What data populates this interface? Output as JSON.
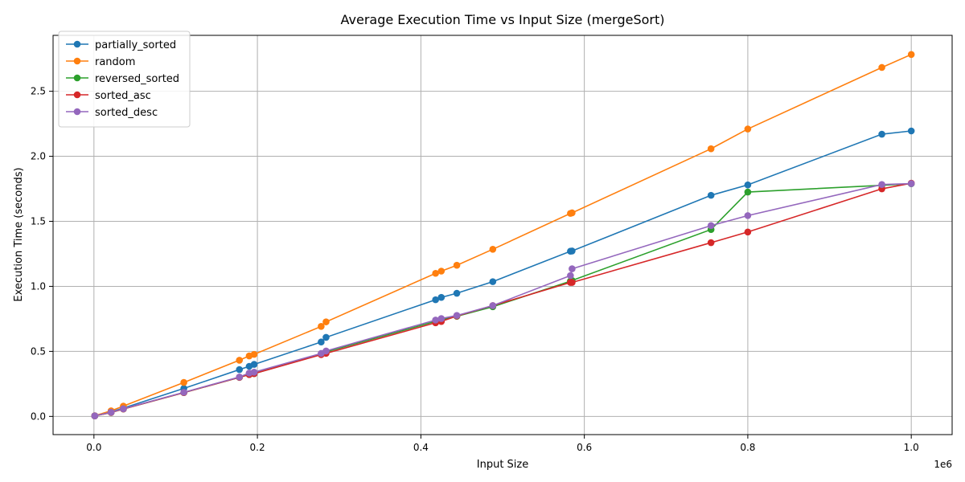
{
  "chart_data": {
    "type": "line",
    "title": "Average Execution Time vs Input Size (mergeSort)",
    "xlabel": "Input Size",
    "ylabel": "Execution Time (seconds)",
    "x_multiplier_label": "1e6",
    "xlim": [
      -0.05,
      1.05
    ],
    "ylim": [
      -0.14,
      2.93
    ],
    "x_ticks": [
      0.0,
      0.2,
      0.4,
      0.6,
      0.8,
      1.0
    ],
    "x_tick_labels": [
      "0.0",
      "0.2",
      "0.4",
      "0.6",
      "0.8",
      "1.0"
    ],
    "y_ticks": [
      0.0,
      0.5,
      1.0,
      1.5,
      2.0,
      2.5
    ],
    "y_tick_labels": [
      "0.0",
      "0.5",
      "1.0",
      "1.5",
      "2.0",
      "2.5"
    ],
    "grid": true,
    "legend_position": "top-left",
    "series": [
      {
        "name": "partially_sorted",
        "color": "#1f77b4",
        "points": [
          [
            0.001,
            0.004
          ],
          [
            0.021,
            0.035
          ],
          [
            0.036,
            0.064
          ],
          [
            0.11,
            0.215
          ],
          [
            0.178,
            0.36
          ],
          [
            0.19,
            0.385
          ],
          [
            0.196,
            0.4
          ],
          [
            0.278,
            0.572
          ],
          [
            0.284,
            0.608
          ],
          [
            0.418,
            0.897
          ],
          [
            0.425,
            0.915
          ],
          [
            0.444,
            0.947
          ],
          [
            0.488,
            1.036
          ],
          [
            0.583,
            1.27
          ],
          [
            0.585,
            1.272
          ],
          [
            0.755,
            1.7
          ],
          [
            0.8,
            1.78
          ],
          [
            0.964,
            2.17
          ],
          [
            1.0,
            2.195
          ]
        ]
      },
      {
        "name": "random",
        "color": "#ff7f0e",
        "points": [
          [
            0.001,
            0.005
          ],
          [
            0.021,
            0.043
          ],
          [
            0.036,
            0.079
          ],
          [
            0.11,
            0.261
          ],
          [
            0.178,
            0.432
          ],
          [
            0.19,
            0.465
          ],
          [
            0.196,
            0.477
          ],
          [
            0.278,
            0.692
          ],
          [
            0.284,
            0.727
          ],
          [
            0.418,
            1.1
          ],
          [
            0.425,
            1.117
          ],
          [
            0.444,
            1.162
          ],
          [
            0.488,
            1.285
          ],
          [
            0.583,
            1.561
          ],
          [
            0.585,
            1.565
          ],
          [
            0.755,
            2.058
          ],
          [
            0.8,
            2.21
          ],
          [
            0.964,
            2.683
          ],
          [
            1.0,
            2.783
          ]
        ]
      },
      {
        "name": "reversed_sorted",
        "color": "#2ca02c",
        "points": [
          [
            0.001,
            0.004
          ],
          [
            0.021,
            0.03
          ],
          [
            0.036,
            0.057
          ],
          [
            0.11,
            0.183
          ],
          [
            0.178,
            0.3
          ],
          [
            0.19,
            0.322
          ],
          [
            0.196,
            0.329
          ],
          [
            0.278,
            0.478
          ],
          [
            0.284,
            0.496
          ],
          [
            0.418,
            0.731
          ],
          [
            0.425,
            0.743
          ],
          [
            0.444,
            0.77
          ],
          [
            0.488,
            0.843
          ],
          [
            0.583,
            1.04
          ],
          [
            0.585,
            1.045
          ],
          [
            0.755,
            1.437
          ],
          [
            0.8,
            1.725
          ],
          [
            0.964,
            1.777
          ],
          [
            1.0,
            1.789
          ]
        ]
      },
      {
        "name": "sorted_asc",
        "color": "#d62728",
        "points": [
          [
            0.001,
            0.004
          ],
          [
            0.021,
            0.03
          ],
          [
            0.036,
            0.057
          ],
          [
            0.11,
            0.183
          ],
          [
            0.178,
            0.3
          ],
          [
            0.19,
            0.322
          ],
          [
            0.196,
            0.329
          ],
          [
            0.278,
            0.475
          ],
          [
            0.284,
            0.485
          ],
          [
            0.418,
            0.72
          ],
          [
            0.425,
            0.73
          ],
          [
            0.444,
            0.772
          ],
          [
            0.488,
            0.852
          ],
          [
            0.583,
            1.03
          ],
          [
            0.585,
            1.03
          ],
          [
            0.755,
            1.336
          ],
          [
            0.8,
            1.418
          ],
          [
            0.964,
            1.75
          ],
          [
            1.0,
            1.793
          ]
        ]
      },
      {
        "name": "sorted_desc",
        "color": "#9467bd",
        "points": [
          [
            0.001,
            0.004
          ],
          [
            0.021,
            0.032
          ],
          [
            0.036,
            0.059
          ],
          [
            0.11,
            0.185
          ],
          [
            0.178,
            0.303
          ],
          [
            0.19,
            0.333
          ],
          [
            0.196,
            0.34
          ],
          [
            0.278,
            0.484
          ],
          [
            0.284,
            0.503
          ],
          [
            0.418,
            0.741
          ],
          [
            0.425,
            0.752
          ],
          [
            0.444,
            0.776
          ],
          [
            0.488,
            0.852
          ],
          [
            0.583,
            1.083
          ],
          [
            0.585,
            1.135
          ],
          [
            0.755,
            1.467
          ],
          [
            0.8,
            1.544
          ],
          [
            0.964,
            1.783
          ],
          [
            1.0,
            1.79
          ]
        ]
      }
    ]
  }
}
